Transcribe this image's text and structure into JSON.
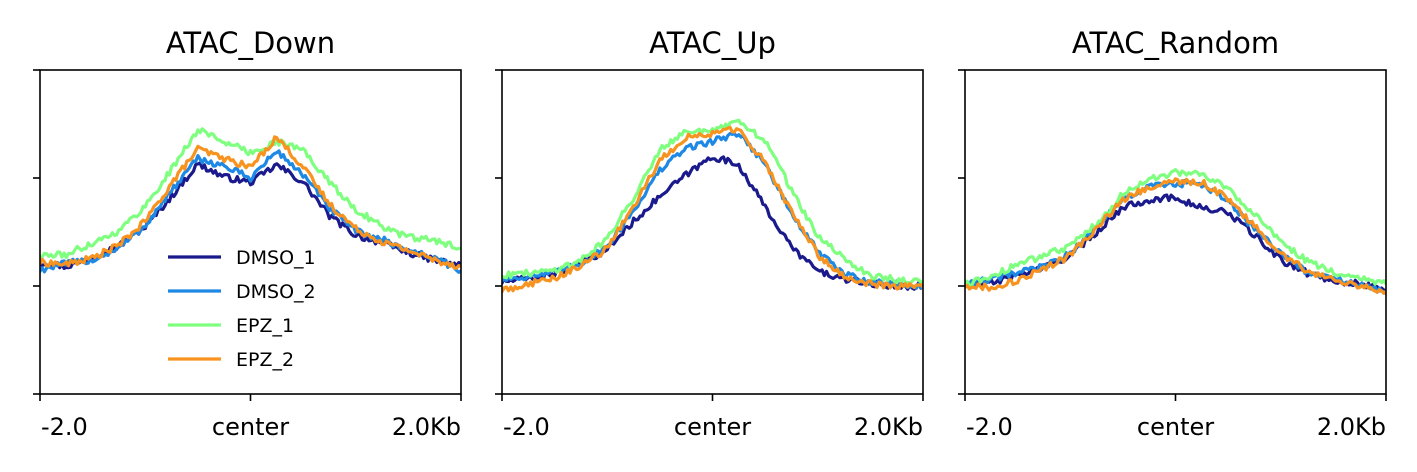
{
  "chart_data": [
    {
      "type": "line",
      "title": "ATAC_Down",
      "x_tick_labels": [
        "-2.0",
        "center",
        "2.0Kb"
      ],
      "x": [
        -2.0,
        -1.75,
        -1.5,
        -1.25,
        -1.0,
        -0.75,
        -0.5,
        -0.25,
        0.0,
        0.25,
        0.5,
        0.75,
        1.0,
        1.25,
        1.5,
        1.75,
        2.0
      ],
      "ylim": [
        0.0,
        3.0
      ],
      "grid": false,
      "legend": {
        "placement": "lower-left-center"
      },
      "series": [
        {
          "name": "DMSO_1",
          "color": "#1a1a8c",
          "values": [
            1.22,
            1.18,
            1.27,
            1.37,
            1.55,
            1.83,
            2.13,
            2.01,
            1.96,
            2.12,
            1.96,
            1.65,
            1.47,
            1.4,
            1.31,
            1.24,
            1.19
          ]
        },
        {
          "name": "DMSO_2",
          "color": "#1e88e5",
          "values": [
            1.15,
            1.21,
            1.24,
            1.35,
            1.56,
            1.88,
            2.18,
            2.11,
            2.0,
            2.25,
            2.03,
            1.72,
            1.51,
            1.43,
            1.33,
            1.26,
            1.14
          ]
        },
        {
          "name": "EPZ_1",
          "color": "#7fff7f",
          "values": [
            1.28,
            1.29,
            1.4,
            1.51,
            1.74,
            2.08,
            2.45,
            2.34,
            2.23,
            2.34,
            2.26,
            1.96,
            1.71,
            1.55,
            1.45,
            1.42,
            1.35
          ]
        },
        {
          "name": "EPZ_2",
          "color": "#f7931e",
          "values": [
            1.22,
            1.2,
            1.26,
            1.38,
            1.6,
            1.95,
            2.27,
            2.18,
            2.1,
            2.38,
            2.1,
            1.76,
            1.53,
            1.41,
            1.33,
            1.24,
            1.18
          ]
        }
      ]
    },
    {
      "type": "line",
      "title": "ATAC_Up",
      "x_tick_labels": [
        "-2.0",
        "center",
        "2.0Kb"
      ],
      "x": [
        -2.0,
        -1.75,
        -1.5,
        -1.25,
        -1.0,
        -0.75,
        -0.5,
        -0.25,
        0.0,
        0.25,
        0.5,
        0.75,
        1.0,
        1.25,
        1.5,
        1.75,
        2.0
      ],
      "ylim": [
        0.0,
        3.0
      ],
      "grid": false,
      "series": [
        {
          "name": "DMSO_1",
          "color": "#1a1a8c",
          "values": [
            1.04,
            1.07,
            1.12,
            1.2,
            1.34,
            1.6,
            1.83,
            2.03,
            2.2,
            2.12,
            1.73,
            1.36,
            1.14,
            1.06,
            1.02,
            1.0,
            1.0
          ]
        },
        {
          "name": "DMSO_2",
          "color": "#1e88e5",
          "values": [
            1.06,
            1.09,
            1.12,
            1.21,
            1.37,
            1.7,
            2.07,
            2.28,
            2.34,
            2.42,
            2.13,
            1.67,
            1.32,
            1.11,
            1.04,
            1.02,
            0.99
          ]
        },
        {
          "name": "EPZ_1",
          "color": "#7fff7f",
          "values": [
            1.1,
            1.12,
            1.15,
            1.24,
            1.44,
            1.82,
            2.27,
            2.44,
            2.43,
            2.52,
            2.35,
            1.89,
            1.46,
            1.25,
            1.1,
            1.06,
            1.03
          ]
        },
        {
          "name": "EPZ_2",
          "color": "#f7931e",
          "values": [
            0.96,
            1.02,
            1.07,
            1.19,
            1.35,
            1.74,
            2.16,
            2.38,
            2.41,
            2.46,
            2.14,
            1.69,
            1.29,
            1.09,
            1.02,
            1.0,
            0.99
          ]
        }
      ]
    },
    {
      "type": "line",
      "title": "ATAC_Random",
      "x_tick_labels": [
        "-2.0",
        "center",
        "2.0Kb"
      ],
      "x": [
        -2.0,
        -1.75,
        -1.5,
        -1.25,
        -1.0,
        -0.75,
        -0.5,
        -0.25,
        0.0,
        0.25,
        0.5,
        0.75,
        1.0,
        1.25,
        1.5,
        1.75,
        2.0
      ],
      "ylim": [
        0.0,
        3.0
      ],
      "grid": false,
      "series": [
        {
          "name": "DMSO_1",
          "color": "#1a1a8c",
          "values": [
            1.0,
            1.03,
            1.1,
            1.17,
            1.28,
            1.5,
            1.73,
            1.8,
            1.82,
            1.72,
            1.68,
            1.47,
            1.24,
            1.12,
            1.05,
            1.02,
            0.96
          ]
        },
        {
          "name": "DMSO_2",
          "color": "#1e88e5",
          "values": [
            1.02,
            1.06,
            1.12,
            1.18,
            1.3,
            1.55,
            1.8,
            1.92,
            1.95,
            1.94,
            1.78,
            1.53,
            1.3,
            1.13,
            1.06,
            1.02,
            0.93
          ]
        },
        {
          "name": "EPZ_1",
          "color": "#7fff7f",
          "values": [
            1.01,
            1.09,
            1.2,
            1.28,
            1.37,
            1.58,
            1.85,
            2.0,
            2.05,
            2.03,
            1.91,
            1.66,
            1.41,
            1.23,
            1.13,
            1.08,
            1.02
          ]
        },
        {
          "name": "EPZ_2",
          "color": "#f7931e",
          "values": [
            1.0,
            0.99,
            1.05,
            1.16,
            1.28,
            1.54,
            1.8,
            1.92,
            1.97,
            1.96,
            1.81,
            1.55,
            1.3,
            1.14,
            1.05,
            1.0,
            0.95
          ]
        }
      ]
    }
  ]
}
